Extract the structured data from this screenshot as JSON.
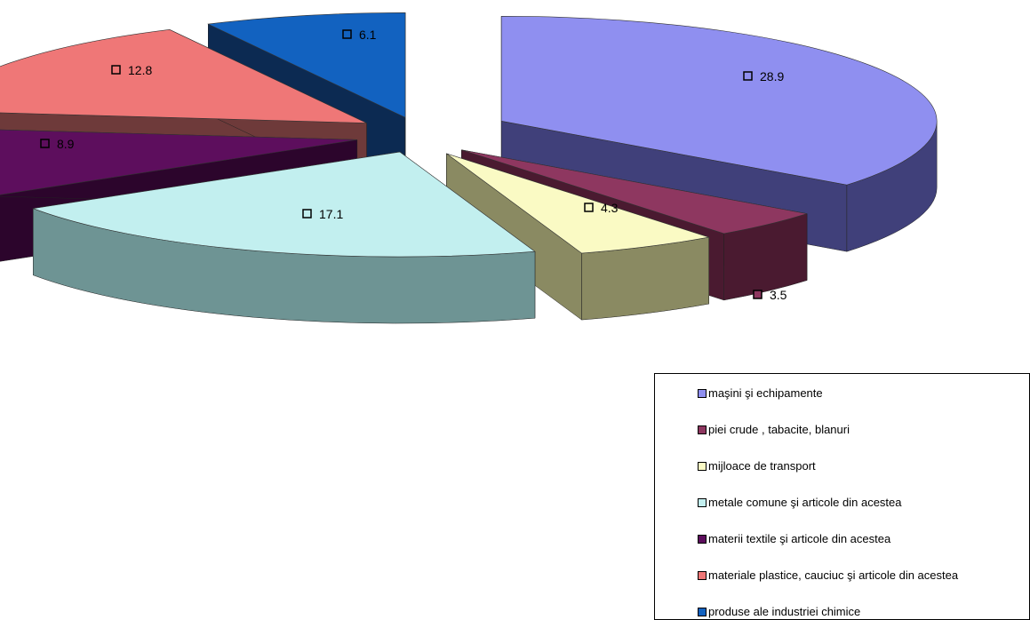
{
  "chart_data": {
    "type": "pie",
    "title": "",
    "slices": [
      {
        "label": "maşini şi echipamente",
        "value": 28.9,
        "value_label": "28.9",
        "color": "#8f8ff0",
        "dark": "#40407a"
      },
      {
        "label": "piei crude , tabacite, blanuri",
        "value": 3.5,
        "value_label": "3.5",
        "color": "#8e3760",
        "dark": "#4a1a30"
      },
      {
        "label": "mijloace de transport",
        "value": 4.3,
        "value_label": "4.3",
        "color": "#fafac4",
        "dark": "#8a8a62"
      },
      {
        "label": "metale comune şi articole din acestea",
        "value": 17.1,
        "value_label": "17.1",
        "color": "#c2efef",
        "dark": "#6e9494"
      },
      {
        "label": "materii textile şi articole din acestea",
        "value": 8.9,
        "value_label": "8.9",
        "color": "#5d0e5d",
        "dark": "#2c052c"
      },
      {
        "label": "materiale plastice, cauciuc şi articole din acestea",
        "value": 12.8,
        "value_label": "12.8",
        "color": "#ef7777",
        "dark": "#6e3a3a"
      },
      {
        "label": "produse ale industriei chimice",
        "value": 6.1,
        "value_label": "6.1",
        "color": "#1262c0",
        "dark": "#0c2a52"
      }
    ],
    "legend_placement": "bottom-right",
    "exploded": true,
    "three_d": true
  }
}
